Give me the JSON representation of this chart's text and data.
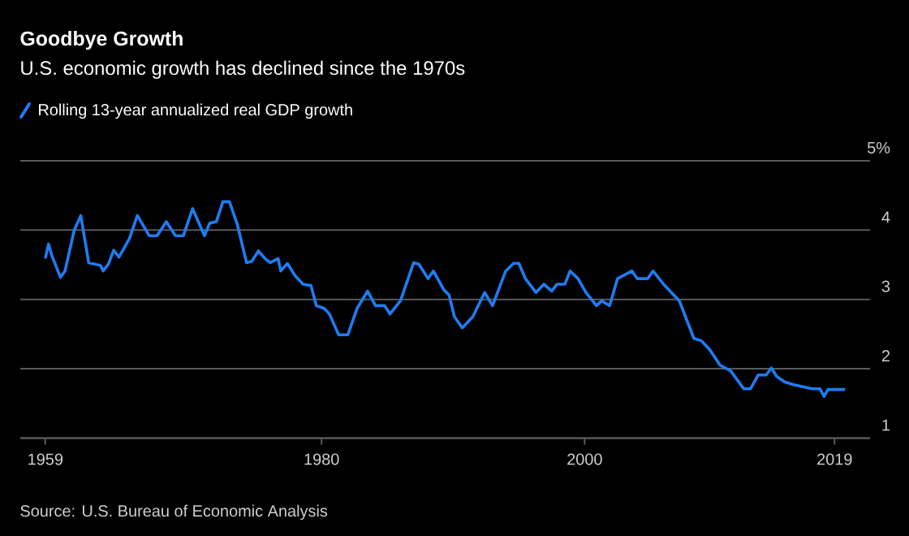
{
  "chart_data": {
    "type": "line",
    "title": "Goodbye Growth",
    "subtitle": "U.S. economic growth has declined since the 1970s",
    "annotations": [
      "Source: U.S. Bureau of Economic Analysis"
    ],
    "xlim": [
      1957.1,
      2021.7
    ],
    "xticks": [
      1959,
      1980,
      2000,
      2019
    ],
    "ylim": [
      1,
      5
    ],
    "yticks": [
      1,
      2,
      3,
      4,
      {
        "value": 5,
        "label": "5%"
      }
    ],
    "grid": "y",
    "legend": "top left",
    "line_style": "solid",
    "series": [
      {
        "name": "Rolling 13-year annualized real GDP growth",
        "color": "#1f7cf2",
        "x": [
          1959.0,
          1959.25,
          1959.5,
          1960.15,
          1960.5,
          1961.2,
          1961.7,
          1962.3,
          1963.2,
          1963.4,
          1963.8,
          1964.2,
          1964.6,
          1965.4,
          1966.0,
          1966.9,
          1967.5,
          1968.2,
          1968.9,
          1969.5,
          1970.2,
          1971.1,
          1971.5,
          1972.0,
          1972.5,
          1973.0,
          1973.6,
          1974.3,
          1974.7,
          1975.2,
          1975.7,
          1976.1,
          1976.7,
          1976.9,
          1977.4,
          1978.0,
          1978.6,
          1979.2,
          1979.6,
          1980.2,
          1980.6,
          1981.3,
          1982.0,
          1982.7,
          1983.5,
          1984.1,
          1984.8,
          1985.2,
          1986.0,
          1987.0,
          1987.4,
          1988.1,
          1988.5,
          1989.3,
          1989.7,
          1990.1,
          1990.7,
          1991.5,
          1992.4,
          1993.0,
          1994.0,
          1994.6,
          1995.0,
          1995.5,
          1996.3,
          1996.9,
          1997.5,
          1997.9,
          1998.5,
          1998.9,
          1999.5,
          2000.1,
          2000.9,
          2001.3,
          2001.9,
          2002.5,
          2003.6,
          2004.0,
          2004.8,
          2005.2,
          2006.0,
          2006.6,
          2007.2,
          2008.3,
          2008.9,
          2009.5,
          2010.3,
          2011.1,
          2012.1,
          2012.6,
          2012.9,
          2013.2,
          2013.8,
          2014.2,
          2014.6,
          2015.2,
          2015.9,
          2017.3,
          2017.9,
          2018.2,
          2018.5,
          2019.8
        ],
        "values": [
          3.59,
          3.8,
          3.63,
          3.32,
          3.41,
          4.0,
          4.21,
          3.53,
          3.49,
          3.41,
          3.51,
          3.71,
          3.61,
          3.88,
          4.21,
          3.92,
          3.92,
          4.12,
          3.92,
          3.92,
          4.31,
          3.92,
          4.1,
          4.12,
          4.41,
          4.41,
          4.08,
          3.53,
          3.55,
          3.7,
          3.59,
          3.53,
          3.59,
          3.41,
          3.52,
          3.34,
          3.22,
          3.2,
          2.91,
          2.87,
          2.79,
          2.49,
          2.49,
          2.87,
          3.12,
          2.91,
          2.91,
          2.79,
          2.98,
          3.53,
          3.51,
          3.3,
          3.41,
          3.14,
          3.06,
          2.75,
          2.59,
          2.75,
          3.1,
          2.91,
          3.41,
          3.52,
          3.52,
          3.3,
          3.1,
          3.22,
          3.12,
          3.22,
          3.22,
          3.41,
          3.3,
          3.1,
          2.91,
          2.98,
          2.91,
          3.3,
          3.41,
          3.3,
          3.3,
          3.41,
          3.22,
          3.1,
          2.98,
          2.44,
          2.4,
          2.28,
          2.05,
          1.97,
          1.71,
          1.71,
          1.81,
          1.91,
          1.91,
          2.01,
          1.89,
          1.81,
          1.77,
          1.71,
          1.71,
          1.6,
          1.7,
          1.7
        ]
      }
    ]
  }
}
